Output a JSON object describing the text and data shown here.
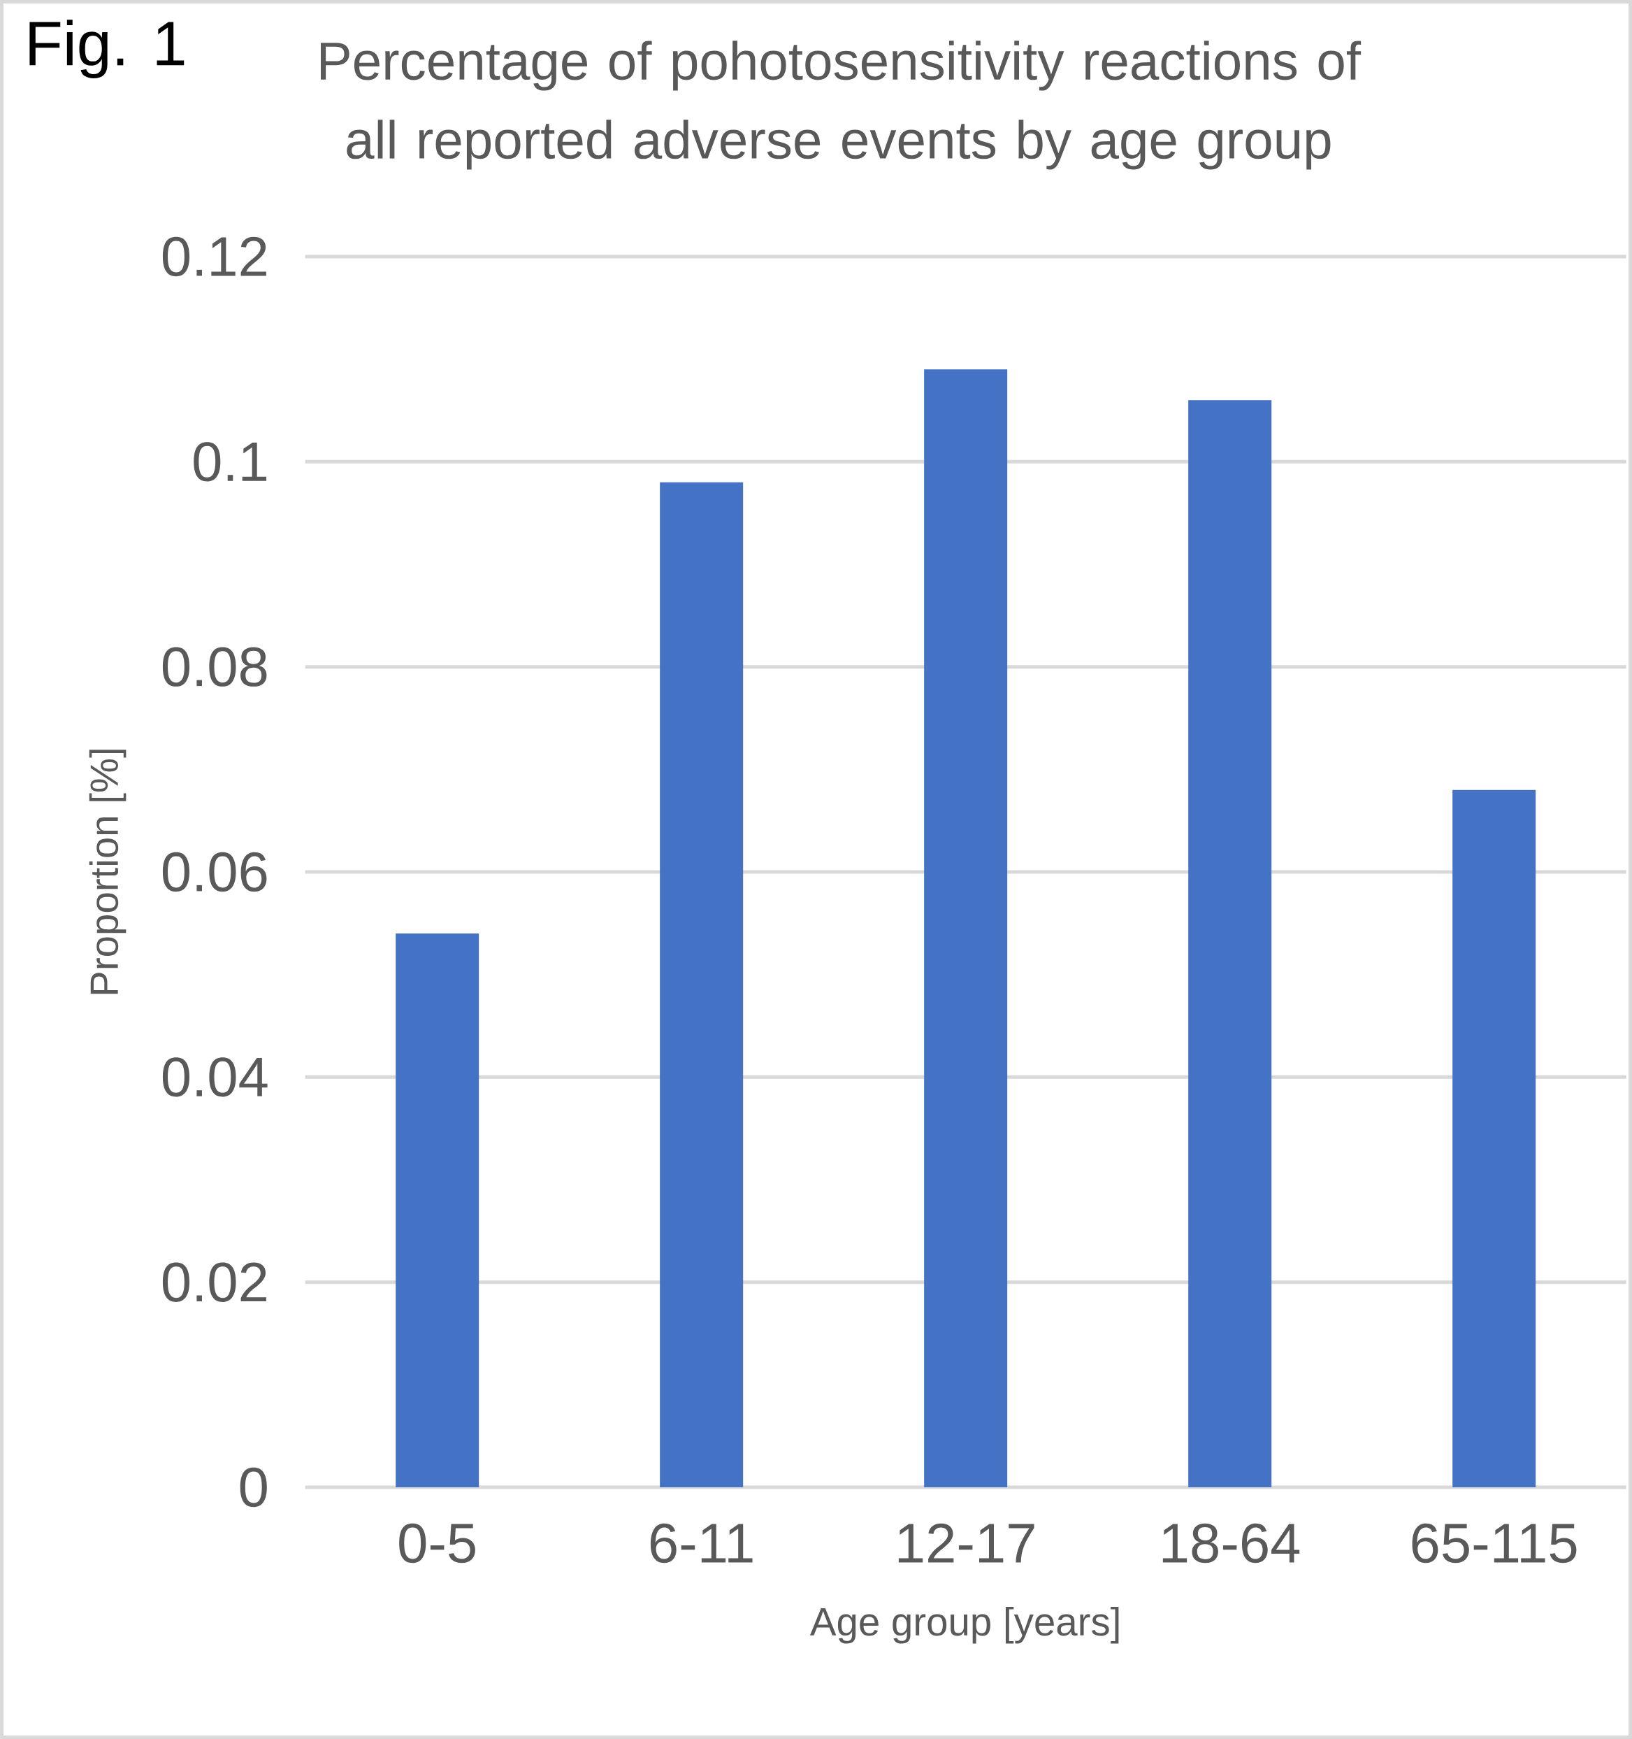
{
  "chart_data": {
    "type": "bar",
    "title": "Percentage of pohotosensitivity reactions of all reported adverse events by age group",
    "xlabel": "Age group [years]",
    "ylabel": "Proportion [%]",
    "annotations": [
      "Fig. 1"
    ],
    "categories": [
      "0-5",
      "6-11",
      "12-17",
      "18-64",
      "65-115"
    ],
    "values": [
      0.054,
      0.098,
      0.109,
      0.106,
      0.068
    ],
    "color": "#4472c4",
    "ylim": [
      0,
      0.12
    ],
    "yticks": [
      0,
      0.02,
      0.04,
      0.06,
      0.08,
      0.1,
      0.12
    ],
    "grid": "y"
  }
}
